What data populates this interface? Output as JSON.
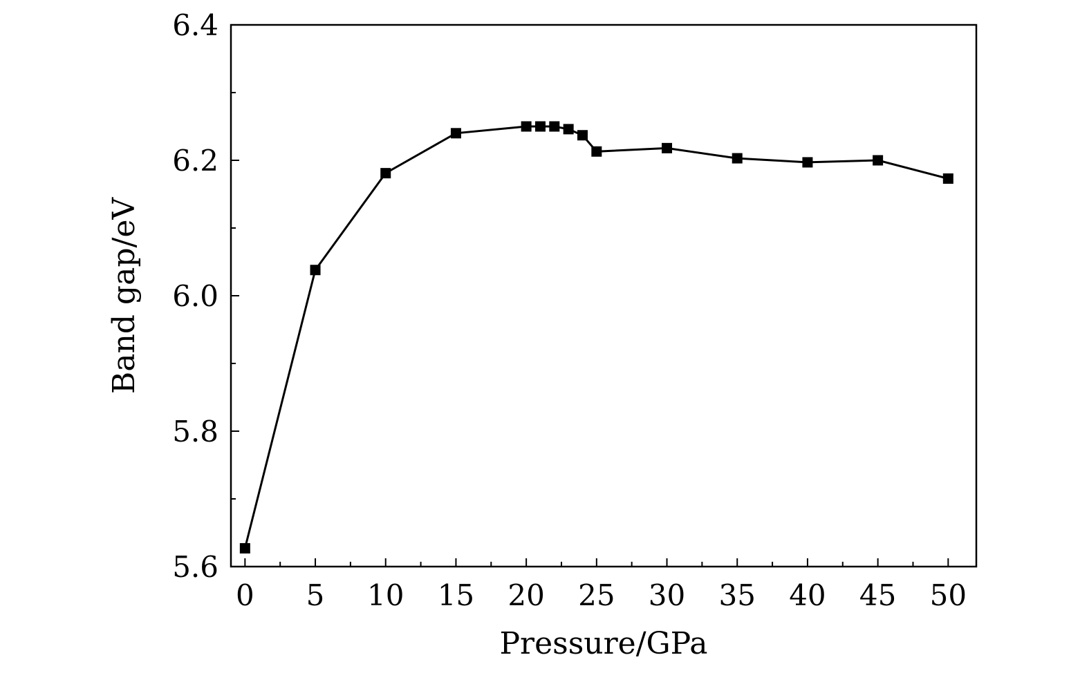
{
  "chart_data": {
    "type": "line",
    "title": "",
    "xlabel": "Pressure/GPa",
    "ylabel": "Band gap/eV",
    "xlim": [
      -1,
      52
    ],
    "ylim": [
      5.6,
      6.4
    ],
    "x_ticks": [
      0,
      5,
      10,
      15,
      20,
      25,
      30,
      35,
      40,
      45,
      50
    ],
    "x_tick_labels": [
      "0",
      "5",
      "10",
      "15",
      "20",
      "25",
      "30",
      "35",
      "40",
      "45",
      "50"
    ],
    "x_minor_step": 2.5,
    "y_ticks": [
      5.6,
      5.8,
      6.0,
      6.2,
      6.4
    ],
    "y_tick_labels": [
      "5.6",
      "5.8",
      "6.0",
      "6.2",
      "6.4"
    ],
    "y_minor_step": 0.1,
    "grid": false,
    "legend": "none",
    "series": [
      {
        "marker": "square",
        "color": "#000000",
        "x": [
          0,
          5,
          10,
          15,
          20,
          21,
          22,
          23,
          24,
          25,
          30,
          35,
          40,
          45,
          50
        ],
        "y": [
          5.627,
          6.038,
          6.181,
          6.24,
          6.25,
          6.25,
          6.25,
          6.246,
          6.237,
          6.213,
          6.218,
          6.203,
          6.197,
          6.2,
          6.173
        ]
      }
    ]
  }
}
